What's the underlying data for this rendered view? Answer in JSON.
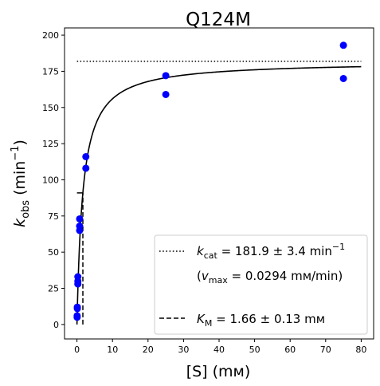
{
  "chart_data": {
    "type": "scatter",
    "title": "Q124M",
    "xlabel": "[S] (mм)",
    "ylabel": {
      "base": "k",
      "sub": "obs",
      "unit_pre": " (min",
      "sup": "−1",
      "unit_post": ")"
    },
    "xlim": [
      -3.5,
      83.5
    ],
    "ylim": [
      -10,
      205
    ],
    "xticks": [
      0,
      10,
      20,
      30,
      40,
      50,
      60,
      70,
      80
    ],
    "yticks": [
      0,
      25,
      50,
      75,
      100,
      125,
      150,
      175,
      200
    ],
    "grid": false,
    "legend_position": "lower-right",
    "series": [
      {
        "kind": "points",
        "color": "#0000ff",
        "x": [
          0.05,
          0.05,
          0.1,
          0.1,
          0.25,
          0.25,
          0.25,
          0.75,
          0.75,
          0.75,
          2.5,
          2.5,
          25,
          25,
          75,
          75
        ],
        "y": [
          5,
          6,
          11,
          12,
          28,
          30,
          33,
          65,
          68,
          73,
          108,
          116,
          159,
          172,
          170,
          193
        ]
      },
      {
        "kind": "fit",
        "model": "michaelis-menten",
        "color": "#000000",
        "vmax": 181.9,
        "km": 1.66,
        "x_range": [
          0,
          80
        ]
      }
    ],
    "kcat_line": {
      "y": 181.9,
      "x_range": [
        0,
        80
      ],
      "style": "dotted"
    },
    "km_line": {
      "x": 1.66,
      "y_range": [
        0,
        90.95
      ],
      "style": "dashed"
    },
    "legend": {
      "kcat": {
        "base": "k",
        "sub": "cat",
        "text": " = 181.9 ± 3.4 min",
        "sup": "−1"
      },
      "vmax": {
        "open": "(",
        "base": "v",
        "sub": "max",
        "text": " = 0.0294 mм/min)"
      },
      "km": {
        "base": "K",
        "sub": "M",
        "text": " = 1.66 ± 0.13 mм"
      }
    }
  }
}
